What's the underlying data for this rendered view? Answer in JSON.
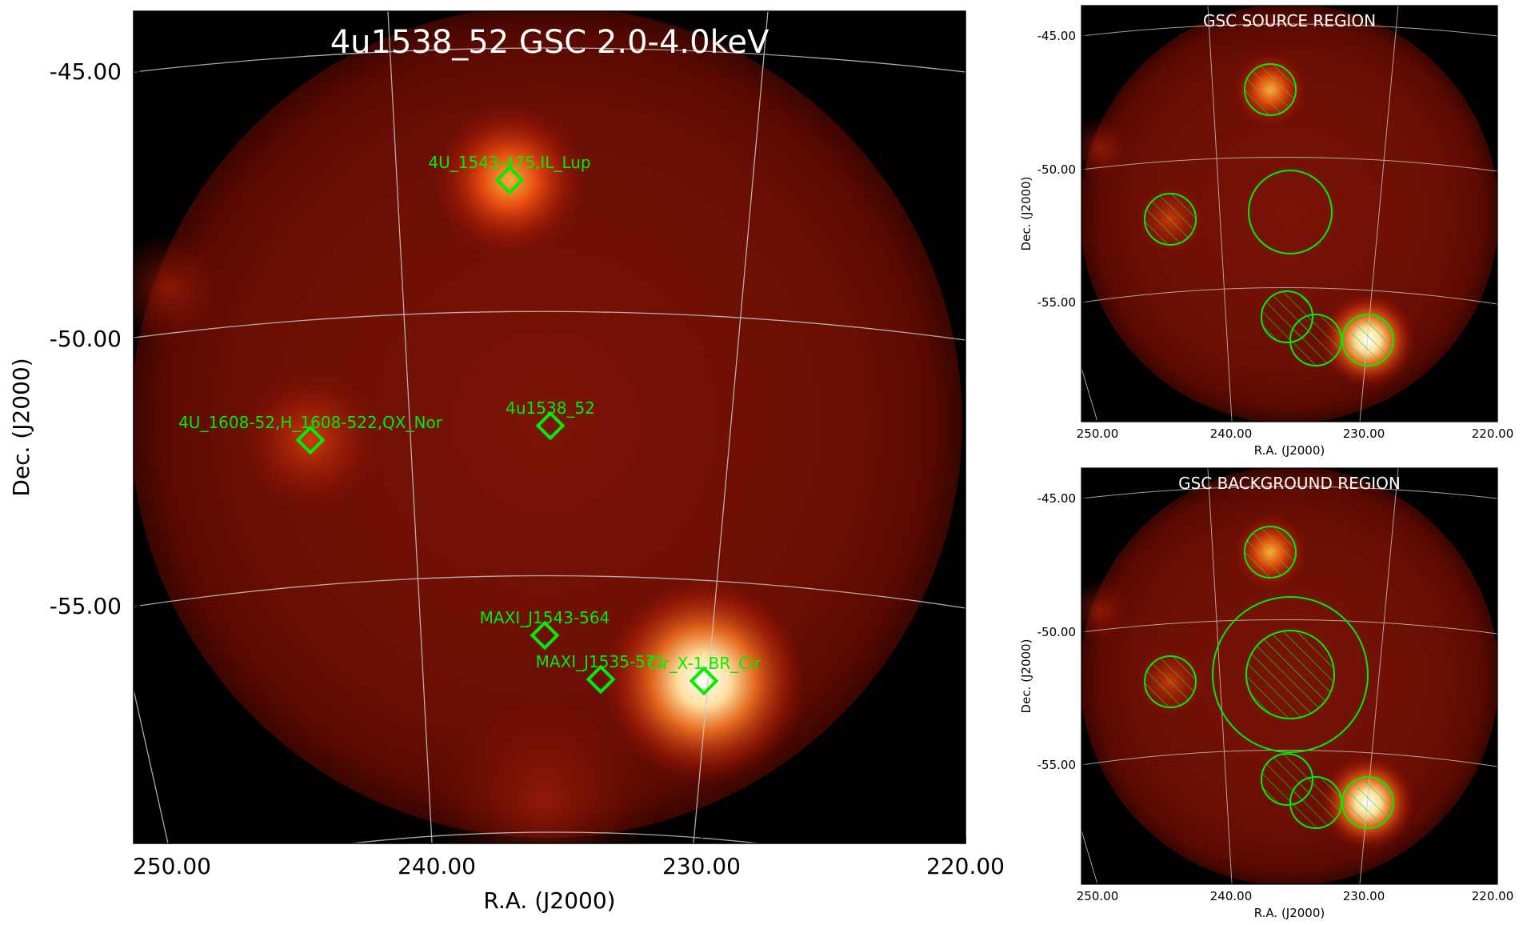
{
  "main": {
    "title": "4u1538_52 GSC 2.0-4.0keV",
    "xlabel": "R.A. (J2000)",
    "ylabel": "Dec. (J2000)",
    "xticks": [
      "250.00",
      "240.00",
      "230.00",
      "220.00"
    ],
    "yticks": [
      "-45.00",
      "-50.00",
      "-55.00"
    ],
    "sources": [
      {
        "name": "4U_1543-475,IL_Lup"
      },
      {
        "name": "4U_1608-52,H_1608-522,QX_Nor"
      },
      {
        "name": "4u1538_52"
      },
      {
        "name": "MAXI_J1543-564"
      },
      {
        "name": "MAXI_J1535-571"
      },
      {
        "name": "Cir_X-1,BR_Cir"
      }
    ]
  },
  "source_panel": {
    "title": "GSC SOURCE REGION",
    "xlabel": "R.A. (J2000)",
    "ylabel": "Dec. (J2000)",
    "xticks": [
      "250.00",
      "240.00",
      "230.00",
      "220.00"
    ],
    "yticks": [
      "-45.00",
      "-50.00",
      "-55.00"
    ]
  },
  "background_panel": {
    "title": "GSC BACKGROUND REGION",
    "xlabel": "R.A. (J2000)",
    "ylabel": "Dec. (J2000)",
    "xticks": [
      "250.00",
      "240.00",
      "230.00",
      "220.00"
    ],
    "yticks": [
      "-45.00",
      "-50.00",
      "-55.00"
    ]
  },
  "colors": {
    "marker": "#00ee00",
    "grid": "#c8c8c8",
    "background": "#000000"
  }
}
